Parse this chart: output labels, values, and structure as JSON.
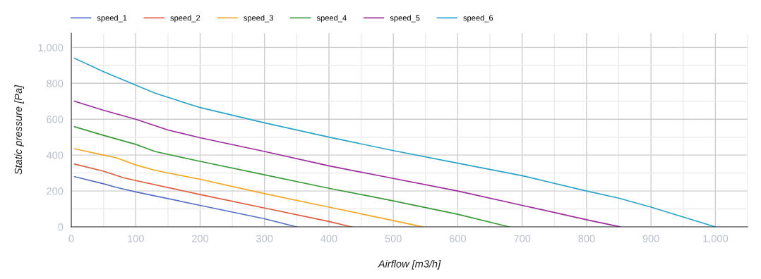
{
  "chart_data": {
    "type": "line",
    "xlabel": "Airflow [m3/h]",
    "ylabel": "Static pressure [Pa]",
    "xlim": [
      0,
      1050
    ],
    "ylim": [
      0,
      1080
    ],
    "xticks": [
      0,
      100,
      200,
      300,
      400,
      500,
      600,
      700,
      800,
      900,
      {
        "value": 1000,
        "label": "1,000"
      }
    ],
    "yticks": [
      0,
      200,
      400,
      600,
      800,
      {
        "value": 1000,
        "label": "1,000"
      }
    ],
    "grid": true,
    "legend": "top left",
    "marker": "none",
    "line_style": "solid",
    "series": [
      {
        "name": "speed_1",
        "color": "#5470c6",
        "x": [
          5,
          50,
          70,
          100,
          200,
          300,
          350
        ],
        "values": [
          280,
          240,
          220,
          195,
          120,
          45,
          0
        ]
      },
      {
        "name": "speed_2",
        "color": "#dd5a3c",
        "x": [
          5,
          50,
          80,
          100,
          200,
          300,
          400,
          435
        ],
        "values": [
          350,
          310,
          275,
          258,
          180,
          105,
          30,
          0
        ]
      },
      {
        "name": "speed_3",
        "color": "#f5a623",
        "x": [
          5,
          50,
          70,
          100,
          130,
          200,
          300,
          400,
          500,
          545
        ],
        "values": [
          435,
          400,
          385,
          345,
          315,
          265,
          185,
          110,
          35,
          0
        ]
      },
      {
        "name": "speed_4",
        "color": "#3a9a3a",
        "x": [
          5,
          50,
          100,
          130,
          200,
          300,
          400,
          500,
          600,
          680
        ],
        "values": [
          558,
          510,
          460,
          420,
          365,
          290,
          215,
          145,
          70,
          0
        ]
      },
      {
        "name": "speed_5",
        "color": "#9c2c9c",
        "x": [
          5,
          50,
          100,
          150,
          200,
          300,
          400,
          500,
          600,
          700,
          800,
          852
        ],
        "values": [
          700,
          650,
          600,
          540,
          497,
          420,
          340,
          270,
          200,
          120,
          40,
          0
        ]
      },
      {
        "name": "speed_6",
        "color": "#2aa3c9",
        "x": [
          5,
          50,
          100,
          130,
          200,
          300,
          400,
          500,
          600,
          700,
          800,
          850,
          900,
          1000
        ],
        "values": [
          940,
          865,
          790,
          745,
          665,
          580,
          500,
          425,
          355,
          285,
          200,
          160,
          110,
          0
        ]
      }
    ]
  }
}
